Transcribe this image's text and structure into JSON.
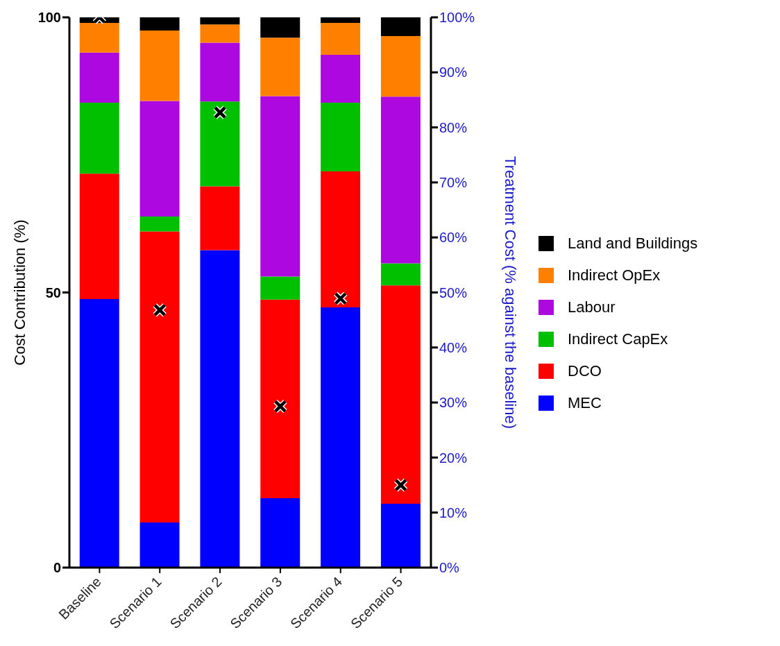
{
  "chart_data": {
    "type": "bar",
    "stacked": true,
    "categories": [
      "Baseline",
      "Scenario 1",
      "Scenario 2",
      "Scenario 3",
      "Scenario 4",
      "Scenario 5"
    ],
    "ylabel": "Cost Contribution (%)",
    "y2label": "Treatment Cost (% against the baseline)",
    "ylim": [
      0,
      100
    ],
    "yticks": [
      0,
      50,
      100
    ],
    "y2lim": [
      0,
      100
    ],
    "y2ticks": [
      {
        "value": 0,
        "label": "0%"
      },
      {
        "value": 10,
        "label": "10%"
      },
      {
        "value": 20,
        "label": "20%"
      },
      {
        "value": 30,
        "label": "30%"
      },
      {
        "value": 40,
        "label": "40%"
      },
      {
        "value": 50,
        "label": "50%"
      },
      {
        "value": 60,
        "label": "60%"
      },
      {
        "value": 70,
        "label": "70%"
      },
      {
        "value": 80,
        "label": "80%"
      },
      {
        "value": 90,
        "label": "90%"
      },
      {
        "value": 100,
        "label": "100%"
      }
    ],
    "legend": "right",
    "grid": false,
    "series": [
      {
        "name": "MEC",
        "color": "#0000ff",
        "values": [
          48.8,
          8.2,
          57.7,
          12.6,
          47.3,
          11.6
        ]
      },
      {
        "name": "DCO",
        "color": "#ff0000",
        "values": [
          22.8,
          52.9,
          11.6,
          36.1,
          24.7,
          39.7
        ]
      },
      {
        "name": "Indirect CapEx",
        "color": "#00c000",
        "values": [
          12.9,
          2.7,
          15.4,
          4.2,
          12.5,
          4.0
        ]
      },
      {
        "name": "Labour",
        "color": "#ae08e0",
        "values": [
          9.1,
          21.0,
          10.7,
          32.8,
          8.7,
          30.3
        ]
      },
      {
        "name": "Indirect OpEx",
        "color": "#ff8000",
        "values": [
          5.4,
          12.8,
          3.3,
          10.6,
          5.8,
          11.0
        ]
      },
      {
        "name": "Land and Buildings",
        "color": "#000000",
        "values": [
          1.0,
          2.4,
          1.3,
          3.7,
          1.0,
          3.4
        ]
      },
      {
        "type": "scatter",
        "axis": "y2",
        "color": "#000000",
        "marker": "cross",
        "x": [
          "Baseline",
          "Scenario 1",
          "Scenario 2",
          "Scenario 3",
          "Scenario 4",
          "Scenario 5"
        ],
        "values": [
          100,
          46.8,
          82.7,
          29.3,
          48.9,
          15.0
        ]
      }
    ]
  }
}
